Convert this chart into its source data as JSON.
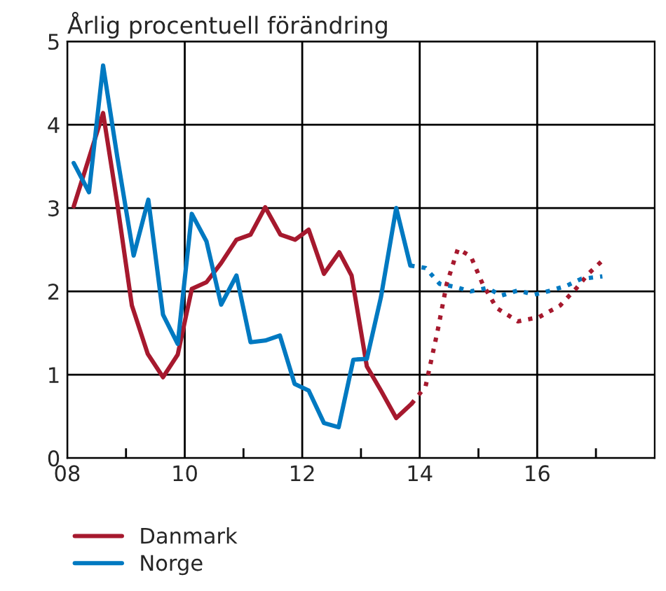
{
  "chart_data": {
    "type": "line",
    "title": "Årlig procentuell förändring",
    "series": [
      {
        "name": "Danmark",
        "color": "#a6192e",
        "line_style": "solid",
        "x": [
          2008.11,
          2008.37,
          2008.61,
          2008.85,
          2009.1,
          2009.37,
          2009.63,
          2009.88,
          2010.12,
          2010.37,
          2010.62,
          2010.88,
          2011.12,
          2011.37,
          2011.63,
          2011.88,
          2012.11,
          2012.37,
          2012.63,
          2012.84,
          2013.1,
          2013.34,
          2013.6,
          2013.86
        ],
        "values": [
          3.02,
          3.6,
          4.14,
          3.06,
          1.83,
          1.25,
          0.97,
          1.24,
          2.03,
          2.11,
          2.34,
          2.62,
          2.68,
          3.01,
          2.68,
          2.62,
          2.74,
          2.21,
          2.47,
          2.19,
          1.1,
          0.81,
          0.48,
          0.65
        ]
      },
      {
        "color": "#a6192e",
        "line_style": "dotted",
        "x": [
          2013.86,
          2014.1,
          2014.3,
          2014.46,
          2014.65,
          2014.87,
          2015.07,
          2015.31,
          2015.67,
          2016.03,
          2016.39,
          2016.67,
          2016.87,
          2017.11
        ],
        "values": [
          0.65,
          0.86,
          1.51,
          2.09,
          2.51,
          2.42,
          2.09,
          1.8,
          1.64,
          1.69,
          1.83,
          2.04,
          2.21,
          2.37
        ]
      },
      {
        "name": "Norge",
        "color": "#0079c1",
        "line_style": "solid",
        "x": [
          2008.11,
          2008.37,
          2008.61,
          2008.85,
          2009.13,
          2009.38,
          2009.63,
          2009.88,
          2010.12,
          2010.37,
          2010.62,
          2010.88,
          2011.12,
          2011.37,
          2011.62,
          2011.87,
          2012.11,
          2012.37,
          2012.62,
          2012.87,
          2013.1,
          2013.34,
          2013.6,
          2013.84
        ],
        "values": [
          3.54,
          3.19,
          4.71,
          3.62,
          2.43,
          3.1,
          1.72,
          1.37,
          2.93,
          2.6,
          1.84,
          2.19,
          1.39,
          1.41,
          1.47,
          0.89,
          0.81,
          0.42,
          0.37,
          1.18,
          1.19,
          1.93,
          3.0,
          2.31
        ]
      },
      {
        "color": "#0079c1",
        "line_style": "dotted",
        "x": [
          2013.84,
          2014.1,
          2014.34,
          2014.62,
          2014.87,
          2015.15,
          2015.39,
          2015.67,
          2015.95,
          2016.23,
          2016.51,
          2016.75,
          2017.11
        ],
        "values": [
          2.31,
          2.28,
          2.09,
          2.05,
          2.0,
          2.04,
          1.95,
          2.01,
          1.96,
          2.01,
          2.07,
          2.15,
          2.18
        ]
      }
    ],
    "xlim": [
      2008,
      2018
    ],
    "ylim": [
      0,
      5
    ],
    "xticks": [
      {
        "value": 2008,
        "label": "08"
      },
      {
        "value": 2009,
        "label": null
      },
      {
        "value": 2010,
        "label": "10"
      },
      {
        "value": 2011,
        "label": null
      },
      {
        "value": 2012,
        "label": "12"
      },
      {
        "value": 2013,
        "label": null
      },
      {
        "value": 2014,
        "label": "14"
      },
      {
        "value": 2015,
        "label": null
      },
      {
        "value": 2016,
        "label": "16"
      },
      {
        "value": 2017,
        "label": null
      }
    ],
    "yticks": [
      0,
      1,
      2,
      3,
      4,
      5
    ],
    "grid": true,
    "legend": "bottom left"
  }
}
